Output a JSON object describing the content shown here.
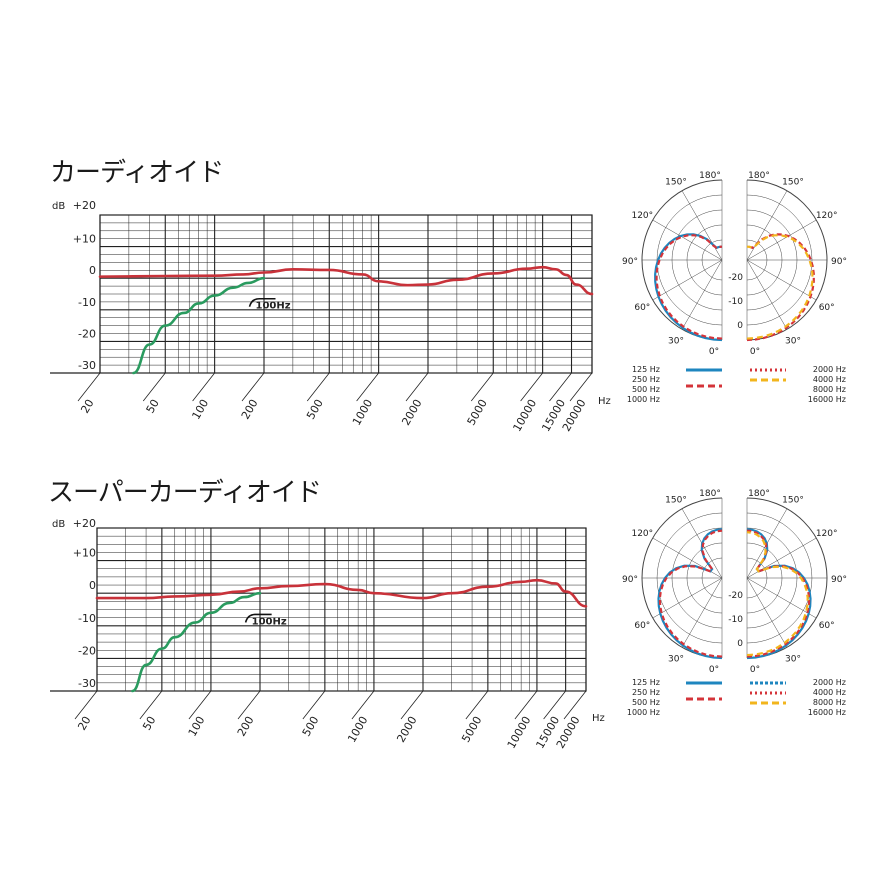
{
  "colors": {
    "response": "#c8323a",
    "lowcut": "#2a9b5f",
    "grid": "#222222",
    "blue": "#1e86bf",
    "red": "#d4343a",
    "yellow": "#f2b51d"
  },
  "filter_label": "100Hz",
  "x_unit": "Hz",
  "chart_data": [
    {
      "type": "line",
      "title": "カーディオイド",
      "xscale": "log",
      "xlim": [
        20,
        20000
      ],
      "ylim": [
        -30,
        20
      ],
      "ylabel": "dB",
      "ytick_labels": [
        "+20",
        "+10",
        "0",
        "-10",
        "-20",
        "-30"
      ],
      "xtick_labels": [
        "20",
        "50",
        "100",
        "200",
        "500",
        "1000",
        "2000",
        "5000",
        "10000",
        "15000",
        "20000"
      ],
      "series": [
        {
          "x": [
            20,
            50,
            100,
            150,
            200,
            300,
            500,
            800,
            1000,
            1500,
            2000,
            3000,
            5000,
            8000,
            10000,
            12000,
            14000,
            16000,
            20000
          ],
          "y": [
            0.5,
            0.7,
            0.8,
            1.2,
            1.8,
            2.8,
            2.6,
            1.2,
            -1.0,
            -2.2,
            -2.0,
            -0.5,
            1.5,
            3.0,
            3.5,
            2.8,
            1.0,
            -2.0,
            -5.0
          ]
        },
        {
          "x": [
            32,
            40,
            50,
            65,
            80,
            100,
            130,
            160,
            200
          ],
          "y": [
            -30,
            -21,
            -15,
            -11,
            -8,
            -5.5,
            -3,
            -1.5,
            0
          ]
        }
      ],
      "polar": {
        "angle_labels_left": [
          "180°",
          "150°",
          "120°",
          "90°",
          "60°",
          "30°",
          "0°"
        ],
        "angle_labels_right": [
          "180°",
          "150°",
          "120°",
          "90°",
          "60°",
          "30°",
          "0°"
        ],
        "radial_labels": [
          "-20",
          "-10",
          "0"
        ],
        "legend_left": [
          "125 Hz",
          "250 Hz",
          "500 Hz",
          "1000 Hz"
        ],
        "legend_right": [
          "2000 Hz",
          "4000 Hz",
          "8000 Hz",
          "16000 Hz"
        ],
        "left_pattern_colors": [
          "blue",
          "red"
        ],
        "right_pattern_colors": [
          "red",
          "yellow"
        ]
      }
    },
    {
      "type": "line",
      "title": "スーパーカーディオイド",
      "xscale": "log",
      "xlim": [
        20,
        20000
      ],
      "ylim": [
        -30,
        20
      ],
      "ylabel": "dB",
      "ytick_labels": [
        "+20",
        "+10",
        "0",
        "-10",
        "-20",
        "-30"
      ],
      "xtick_labels": [
        "20",
        "50",
        "100",
        "200",
        "500",
        "1000",
        "2000",
        "5000",
        "10000",
        "15000",
        "20000"
      ],
      "series": [
        {
          "x": [
            20,
            40,
            60,
            100,
            150,
            200,
            300,
            500,
            800,
            1000,
            2000,
            3000,
            5000,
            8000,
            10000,
            13000,
            15000,
            20000
          ],
          "y": [
            -1.5,
            -1.5,
            -1.0,
            -0.5,
            0.5,
            1.5,
            2.2,
            2.8,
            1.0,
            0.0,
            -1.5,
            0.0,
            2.0,
            3.5,
            4.0,
            3.0,
            0.5,
            -4.0
          ]
        },
        {
          "x": [
            33,
            40,
            50,
            60,
            80,
            100,
            130,
            160,
            200
          ],
          "y": [
            -30,
            -22,
            -17,
            -13.5,
            -9,
            -6,
            -3,
            -1.2,
            0
          ]
        }
      ],
      "polar": {
        "angle_labels_left": [
          "180°",
          "150°",
          "120°",
          "90°",
          "60°",
          "30°",
          "0°"
        ],
        "angle_labels_right": [
          "180°",
          "150°",
          "120°",
          "90°",
          "60°",
          "30°",
          "0°"
        ],
        "radial_labels": [
          "-20",
          "-10",
          "0"
        ],
        "legend_left": [
          "125 Hz",
          "250 Hz",
          "500 Hz",
          "1000 Hz"
        ],
        "legend_right": [
          "2000 Hz",
          "4000 Hz",
          "8000 Hz",
          "16000 Hz"
        ],
        "left_pattern_colors": [
          "blue",
          "red"
        ],
        "right_pattern_colors": [
          "blue",
          "red",
          "yellow"
        ]
      }
    }
  ]
}
